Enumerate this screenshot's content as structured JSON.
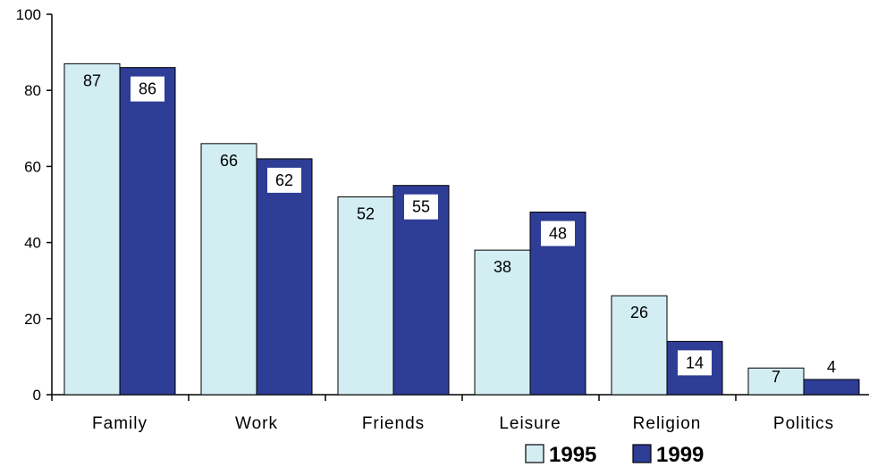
{
  "chart_data": {
    "type": "bar",
    "categories": [
      "Family",
      "Work",
      "Friends",
      "Leisure",
      "Religion",
      "Politics"
    ],
    "series": [
      {
        "name": "1995",
        "values": [
          87,
          66,
          52,
          38,
          26,
          7
        ],
        "color": "#d2eef3"
      },
      {
        "name": "1999",
        "values": [
          86,
          62,
          55,
          48,
          14,
          4
        ],
        "color": "#2e3d96"
      }
    ],
    "ylim": [
      0,
      100
    ],
    "yticks": [
      0,
      20,
      40,
      60,
      80,
      100
    ],
    "grid": false,
    "legend": "bottom-right",
    "data_labels": true
  }
}
